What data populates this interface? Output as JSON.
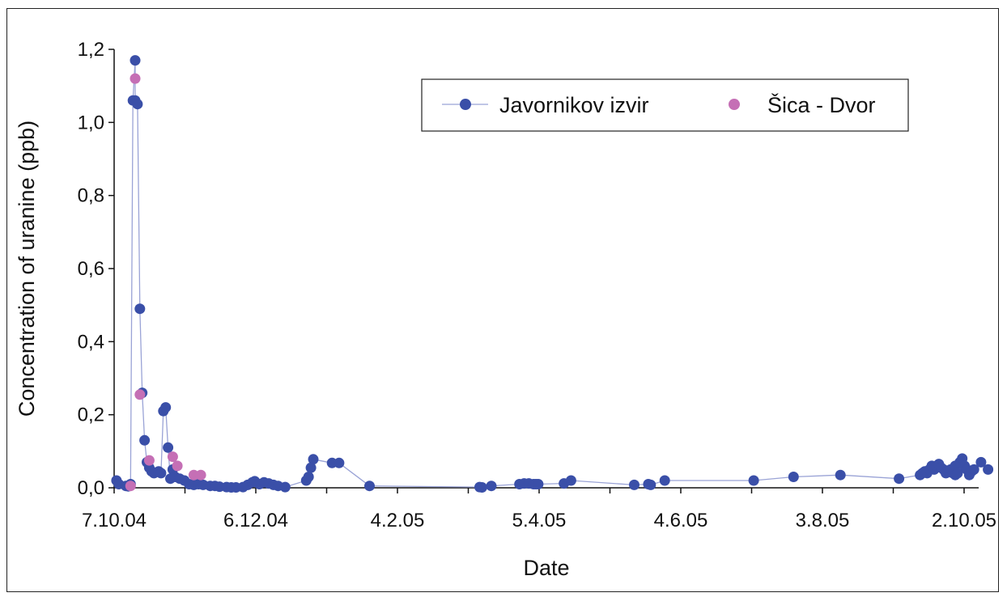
{
  "chart_data": {
    "type": "scatter",
    "xlabel": "Date",
    "ylabel": "Concentration of uranine (ppb)",
    "x_ticks": [
      "7.10.04",
      "6.12.04",
      "4.2.05",
      "5.4.05",
      "4.6.05",
      "3.8.05",
      "2.10.05"
    ],
    "x_start": "2004-10-07",
    "x_end": "2005-10-11",
    "y_ticks": [
      "0,0",
      "0,2",
      "0,4",
      "0,6",
      "0,8",
      "1,0",
      "1,2"
    ],
    "ylim": [
      0,
      1.2
    ],
    "grid": false,
    "legend_position": "top-right",
    "colors": {
      "javornikov": "#3a4fa8",
      "sica": "#c56fb5",
      "connector": "#9aa3d6"
    },
    "series": [
      {
        "name": "Javornikov izvir",
        "style": "line-markers",
        "color_key": "javornikov",
        "points": [
          [
            "2004-10-08",
            0.02
          ],
          [
            "2004-10-09",
            0.01
          ],
          [
            "2004-10-12",
            0.005
          ],
          [
            "2004-10-13",
            0.004
          ],
          [
            "2004-10-14",
            0.01
          ],
          [
            "2004-10-15",
            1.06
          ],
          [
            "2004-10-16",
            1.17
          ],
          [
            "2004-10-16",
            1.06
          ],
          [
            "2004-10-17",
            1.05
          ],
          [
            "2004-10-18",
            0.49
          ],
          [
            "2004-10-19",
            0.26
          ],
          [
            "2004-10-20",
            0.13
          ],
          [
            "2004-10-21",
            0.07
          ],
          [
            "2004-10-22",
            0.055
          ],
          [
            "2004-10-23",
            0.045
          ],
          [
            "2004-10-24",
            0.04
          ],
          [
            "2004-10-26",
            0.045
          ],
          [
            "2004-10-27",
            0.04
          ],
          [
            "2004-10-28",
            0.21
          ],
          [
            "2004-10-29",
            0.22
          ],
          [
            "2004-10-30",
            0.11
          ],
          [
            "2004-10-31",
            0.025
          ],
          [
            "2004-11-01",
            0.05
          ],
          [
            "2004-11-02",
            0.03
          ],
          [
            "2004-11-04",
            0.025
          ],
          [
            "2004-11-06",
            0.02
          ],
          [
            "2004-11-08",
            0.01
          ],
          [
            "2004-11-10",
            0.008
          ],
          [
            "2004-11-12",
            0.01
          ],
          [
            "2004-11-14",
            0.008
          ],
          [
            "2004-11-17",
            0.005
          ],
          [
            "2004-11-19",
            0.005
          ],
          [
            "2004-11-21",
            0.003
          ],
          [
            "2004-11-24",
            0.002
          ],
          [
            "2004-11-26",
            0.001
          ],
          [
            "2004-11-28",
            0.001
          ],
          [
            "2004-12-01",
            0.002
          ],
          [
            "2004-12-03",
            0.008
          ],
          [
            "2004-12-05",
            0.015
          ],
          [
            "2004-12-06",
            0.018
          ],
          [
            "2004-12-08",
            0.01
          ],
          [
            "2004-12-10",
            0.015
          ],
          [
            "2004-12-12",
            0.012
          ],
          [
            "2004-12-14",
            0.008
          ],
          [
            "2004-12-16",
            0.005
          ],
          [
            "2004-12-19",
            0.002
          ],
          [
            "2004-12-28",
            0.02
          ],
          [
            "2004-12-29",
            0.03
          ],
          [
            "2004-12-30",
            0.055
          ],
          [
            "2004-12-31",
            0.078
          ],
          [
            "2005-01-08",
            0.068
          ],
          [
            "2005-01-11",
            0.068
          ],
          [
            "2005-01-24",
            0.005
          ],
          [
            "2005-03-12",
            0.002
          ],
          [
            "2005-03-13",
            0.001
          ],
          [
            "2005-03-17",
            0.005
          ],
          [
            "2005-03-29",
            0.01
          ],
          [
            "2005-03-31",
            0.012
          ],
          [
            "2005-04-02",
            0.012
          ],
          [
            "2005-04-04",
            0.01
          ],
          [
            "2005-04-05",
            0.01
          ],
          [
            "2005-04-06",
            0.01
          ],
          [
            "2005-04-17",
            0.012
          ],
          [
            "2005-04-20",
            0.02
          ],
          [
            "2005-05-17",
            0.008
          ],
          [
            "2005-05-23",
            0.01
          ],
          [
            "2005-05-24",
            0.008
          ],
          [
            "2005-05-30",
            0.02
          ],
          [
            "2005-07-07",
            0.02
          ],
          [
            "2005-07-24",
            0.03
          ],
          [
            "2005-08-13",
            0.035
          ],
          [
            "2005-09-07",
            0.025
          ],
          [
            "2005-09-16",
            0.035
          ],
          [
            "2005-09-17",
            0.04
          ],
          [
            "2005-09-18",
            0.045
          ],
          [
            "2005-09-19",
            0.04
          ],
          [
            "2005-09-20",
            0.05
          ],
          [
            "2005-09-21",
            0.06
          ],
          [
            "2005-09-22",
            0.05
          ],
          [
            "2005-09-23",
            0.06
          ],
          [
            "2005-09-24",
            0.065
          ],
          [
            "2005-09-25",
            0.055
          ],
          [
            "2005-09-26",
            0.05
          ],
          [
            "2005-09-27",
            0.04
          ],
          [
            "2005-09-28",
            0.045
          ],
          [
            "2005-09-29",
            0.05
          ],
          [
            "2005-09-30",
            0.04
          ],
          [
            "2005-10-01",
            0.06
          ],
          [
            "2005-10-01",
            0.035
          ],
          [
            "2005-10-02",
            0.04
          ],
          [
            "2005-10-03",
            0.07
          ],
          [
            "2005-10-04",
            0.08
          ],
          [
            "2005-10-05",
            0.06
          ],
          [
            "2005-10-06",
            0.05
          ],
          [
            "2005-10-07",
            0.035
          ],
          [
            "2005-10-08",
            0.045
          ],
          [
            "2005-10-09",
            0.05
          ],
          [
            "2005-10-12",
            0.07
          ],
          [
            "2005-10-15",
            0.05
          ]
        ]
      },
      {
        "name": "Šica - Dvor",
        "style": "markers",
        "color_key": "sica",
        "points": [
          [
            "2004-10-14",
            0.005
          ],
          [
            "2004-10-16",
            1.12
          ],
          [
            "2004-10-18",
            0.255
          ],
          [
            "2004-10-22",
            0.075
          ],
          [
            "2004-11-01",
            0.085
          ],
          [
            "2004-11-03",
            0.06
          ],
          [
            "2004-11-10",
            0.035
          ],
          [
            "2004-11-13",
            0.035
          ]
        ]
      }
    ]
  }
}
